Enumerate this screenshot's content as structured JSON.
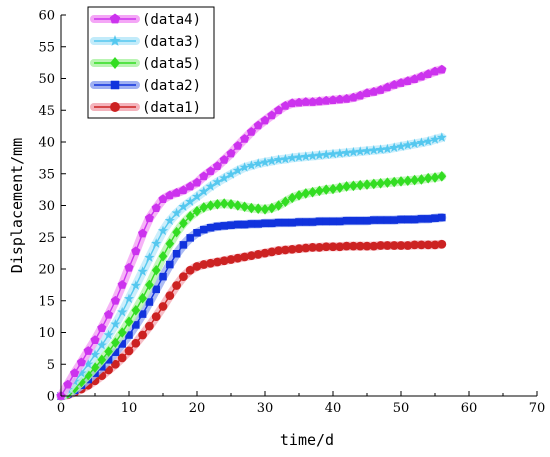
{
  "chart_data": {
    "type": "line",
    "title": "",
    "xlabel": "time/d",
    "ylabel": "Displacement/mm",
    "xlim": [
      0,
      70
    ],
    "ylim": [
      0,
      60
    ],
    "x_ticks": [
      0,
      10,
      20,
      30,
      40,
      50,
      60,
      70
    ],
    "y_ticks": [
      0,
      5,
      10,
      15,
      20,
      25,
      30,
      35,
      40,
      45,
      50,
      55,
      60
    ],
    "grid": false,
    "legend_position": "top-left",
    "series": [
      {
        "name": "(data4)",
        "color": "#cc33ee",
        "glow": "#f4a6f6",
        "marker": "pentagon",
        "x": [
          0,
          1,
          2,
          3,
          4,
          5,
          6,
          7,
          8,
          9,
          10,
          11,
          12,
          13,
          14,
          15,
          16,
          17,
          18,
          19,
          20,
          21,
          22,
          23,
          24,
          25,
          26,
          27,
          28,
          29,
          30,
          31,
          32,
          33,
          34,
          35,
          36,
          37,
          38,
          39,
          40,
          41,
          42,
          43,
          44,
          45,
          46,
          47,
          48,
          49,
          50,
          51,
          52,
          53,
          54,
          55,
          56
        ],
        "y": [
          0,
          1.8,
          3.6,
          5.3,
          7.1,
          8.8,
          10.7,
          12.8,
          15.0,
          17.5,
          20.2,
          22.8,
          25.6,
          28.0,
          29.6,
          31.0,
          31.6,
          32.0,
          32.4,
          33.0,
          33.6,
          34.6,
          35.4,
          36.2,
          37.2,
          38.2,
          39.4,
          40.5,
          41.6,
          42.6,
          43.4,
          44.2,
          45.0,
          45.7,
          46.1,
          46.2,
          46.3,
          46.3,
          46.4,
          46.5,
          46.6,
          46.7,
          46.8,
          47.0,
          47.3,
          47.7,
          47.9,
          48.2,
          48.6,
          49.0,
          49.3,
          49.6,
          49.9,
          50.3,
          50.7,
          51.1,
          51.4
        ]
      },
      {
        "name": "(data3)",
        "color": "#55c8ef",
        "glow": "#c2ebfa",
        "marker": "star",
        "x": [
          0,
          1,
          2,
          3,
          4,
          5,
          6,
          7,
          8,
          9,
          10,
          11,
          12,
          13,
          14,
          15,
          16,
          17,
          18,
          19,
          20,
          21,
          22,
          23,
          24,
          25,
          26,
          27,
          28,
          29,
          30,
          31,
          32,
          33,
          34,
          35,
          36,
          37,
          38,
          39,
          40,
          41,
          42,
          43,
          44,
          45,
          46,
          47,
          48,
          49,
          50,
          51,
          52,
          53,
          54,
          55,
          56
        ],
        "y": [
          0,
          1.0,
          2.3,
          3.6,
          5.0,
          6.5,
          8.0,
          9.6,
          11.3,
          13.2,
          15.3,
          17.4,
          19.6,
          21.8,
          24.0,
          26.0,
          27.6,
          28.8,
          29.8,
          30.6,
          31.4,
          32.2,
          33.0,
          33.7,
          34.3,
          34.9,
          35.5,
          36.0,
          36.3,
          36.6,
          36.8,
          37.0,
          37.2,
          37.3,
          37.5,
          37.6,
          37.7,
          37.8,
          37.9,
          38.0,
          38.1,
          38.2,
          38.3,
          38.4,
          38.5,
          38.6,
          38.7,
          38.8,
          38.9,
          39.1,
          39.3,
          39.5,
          39.7,
          39.9,
          40.1,
          40.4,
          40.7
        ]
      },
      {
        "name": "(data5)",
        "color": "#33dd22",
        "glow": "#b9f4b2",
        "marker": "diamond",
        "x": [
          0,
          1,
          2,
          3,
          4,
          5,
          6,
          7,
          8,
          9,
          10,
          11,
          12,
          13,
          14,
          15,
          16,
          17,
          18,
          19,
          20,
          21,
          22,
          23,
          24,
          25,
          26,
          27,
          28,
          29,
          30,
          31,
          32,
          33,
          34,
          35,
          36,
          37,
          38,
          39,
          40,
          41,
          42,
          43,
          44,
          45,
          46,
          47,
          48,
          49,
          50,
          51,
          52,
          53,
          54,
          55,
          56
        ],
        "y": [
          0,
          0.4,
          1.2,
          2.2,
          3.3,
          4.5,
          5.7,
          7.0,
          8.4,
          10.0,
          11.7,
          13.5,
          15.4,
          17.5,
          19.8,
          22.0,
          24.0,
          25.8,
          27.2,
          28.3,
          29.1,
          29.7,
          30.0,
          30.2,
          30.3,
          30.2,
          30.0,
          29.8,
          29.6,
          29.5,
          29.4,
          29.6,
          30.0,
          30.6,
          31.2,
          31.6,
          31.9,
          32.1,
          32.3,
          32.5,
          32.6,
          32.8,
          33.0,
          33.1,
          33.2,
          33.3,
          33.4,
          33.5,
          33.6,
          33.7,
          33.8,
          33.9,
          34.0,
          34.1,
          34.3,
          34.4,
          34.6
        ]
      },
      {
        "name": "(data2)",
        "color": "#1133dd",
        "glow": "#9fb0f2",
        "marker": "square",
        "x": [
          0,
          1,
          2,
          3,
          4,
          5,
          6,
          7,
          8,
          9,
          10,
          11,
          12,
          13,
          14,
          15,
          16,
          17,
          18,
          19,
          20,
          21,
          22,
          23,
          24,
          25,
          26,
          27,
          28,
          29,
          30,
          31,
          32,
          33,
          34,
          35,
          36,
          37,
          38,
          39,
          40,
          41,
          42,
          43,
          44,
          45,
          46,
          47,
          48,
          49,
          50,
          51,
          52,
          53,
          54,
          55,
          56
        ],
        "y": [
          0,
          0.3,
          0.9,
          1.7,
          2.6,
          3.6,
          4.6,
          5.7,
          6.9,
          8.2,
          9.6,
          11.2,
          12.9,
          14.8,
          16.8,
          18.8,
          20.7,
          22.4,
          23.8,
          24.9,
          25.7,
          26.2,
          26.5,
          26.7,
          26.8,
          26.9,
          27.0,
          27.0,
          27.1,
          27.1,
          27.2,
          27.2,
          27.3,
          27.3,
          27.3,
          27.4,
          27.4,
          27.4,
          27.5,
          27.5,
          27.5,
          27.5,
          27.6,
          27.6,
          27.6,
          27.6,
          27.7,
          27.7,
          27.7,
          27.7,
          27.8,
          27.8,
          27.8,
          27.9,
          27.9,
          28.0,
          28.1
        ]
      },
      {
        "name": "(data1)",
        "color": "#cc2222",
        "glow": "#f4b3bc",
        "marker": "circle",
        "x": [
          0,
          1,
          2,
          3,
          4,
          5,
          6,
          7,
          8,
          9,
          10,
          11,
          12,
          13,
          14,
          15,
          16,
          17,
          18,
          19,
          20,
          21,
          22,
          23,
          24,
          25,
          26,
          27,
          28,
          29,
          30,
          31,
          32,
          33,
          34,
          35,
          36,
          37,
          38,
          39,
          40,
          41,
          42,
          43,
          44,
          45,
          46,
          47,
          48,
          49,
          50,
          51,
          52,
          53,
          54,
          55,
          56
        ],
        "y": [
          0,
          0.2,
          0.6,
          1.1,
          1.7,
          2.4,
          3.2,
          4.1,
          5.0,
          6.0,
          7.1,
          8.3,
          9.6,
          11.0,
          12.5,
          14.1,
          15.8,
          17.4,
          18.8,
          19.8,
          20.4,
          20.7,
          20.9,
          21.1,
          21.3,
          21.5,
          21.7,
          21.9,
          22.1,
          22.3,
          22.5,
          22.7,
          22.9,
          23.0,
          23.1,
          23.2,
          23.3,
          23.4,
          23.4,
          23.5,
          23.5,
          23.5,
          23.6,
          23.6,
          23.6,
          23.6,
          23.6,
          23.7,
          23.7,
          23.7,
          23.7,
          23.7,
          23.8,
          23.8,
          23.8,
          23.8,
          23.9
        ]
      }
    ]
  }
}
